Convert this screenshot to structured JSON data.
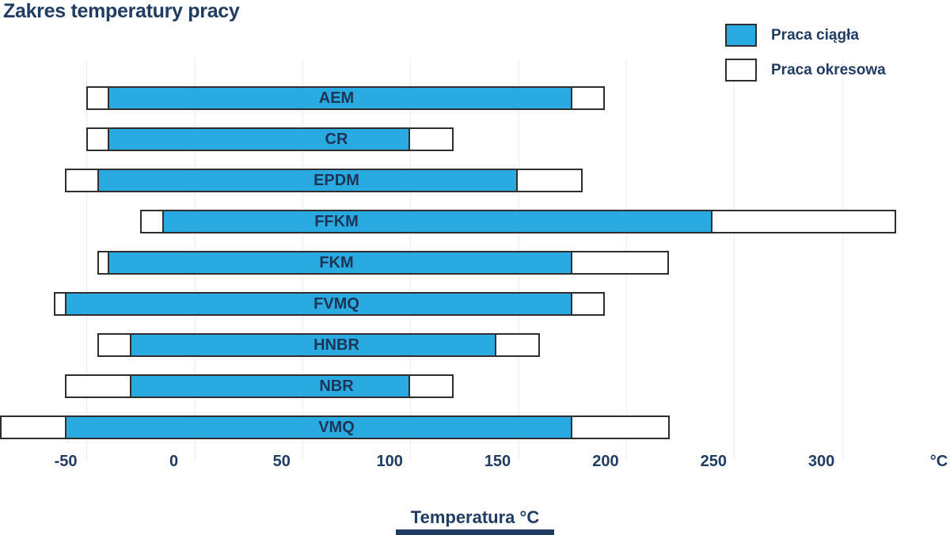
{
  "title": "Zakres temperatury pracy",
  "legend": {
    "items": [
      {
        "label": "Praca ciągła",
        "key": "continuous"
      },
      {
        "label": "Praca okresowa",
        "key": "intermittent"
      }
    ]
  },
  "x_axis": {
    "title": "Temperatura °C",
    "unit_label": "°C",
    "ticks": [
      -50,
      0,
      50,
      100,
      150,
      200,
      250,
      300
    ],
    "min": -90,
    "max": 350,
    "grid_step": 50,
    "grid_ticks": [
      -50,
      0,
      50,
      100,
      150,
      200,
      250,
      300,
      350
    ]
  },
  "chart_data": {
    "type": "bar",
    "orientation": "horizontal",
    "title": "Zakres temperatury pracy",
    "xlabel": "Temperatura °C",
    "xlim": [
      -90,
      350
    ],
    "grid": "vertical, every 50 °C",
    "legend_position": "top-right",
    "series_legend": [
      "Praca ciągła",
      "Praca okresowa"
    ],
    "materials": [
      {
        "name": "AEM",
        "intermittent": [
          -50,
          190
        ],
        "continuous": [
          -40,
          175
        ]
      },
      {
        "name": "CR",
        "intermittent": [
          -50,
          120
        ],
        "continuous": [
          -40,
          100
        ]
      },
      {
        "name": "EPDM",
        "intermittent": [
          -60,
          180
        ],
        "continuous": [
          -45,
          150
        ]
      },
      {
        "name": "FFKM",
        "intermittent": [
          -25,
          325
        ],
        "continuous": [
          -15,
          240
        ]
      },
      {
        "name": "FKM",
        "intermittent": [
          -45,
          220
        ],
        "continuous": [
          -40,
          175
        ]
      },
      {
        "name": "FVMQ",
        "intermittent": [
          -65,
          190
        ],
        "continuous": [
          -60,
          175
        ]
      },
      {
        "name": "HNBR",
        "intermittent": [
          -45,
          160
        ],
        "continuous": [
          -30,
          140
        ]
      },
      {
        "name": "NBR",
        "intermittent": [
          -60,
          120
        ],
        "continuous": [
          -30,
          100
        ]
      },
      {
        "name": "VMQ",
        "intermittent": [
          -90,
          220
        ],
        "continuous": [
          -60,
          175
        ]
      }
    ]
  },
  "colors": {
    "continuous": "#29ABE2",
    "intermittent": "#FFFFFF",
    "bar_border": "#2E2E2E",
    "text": "#213C63",
    "grid": "#EDEDED",
    "bottom_strip": "#213C63"
  }
}
